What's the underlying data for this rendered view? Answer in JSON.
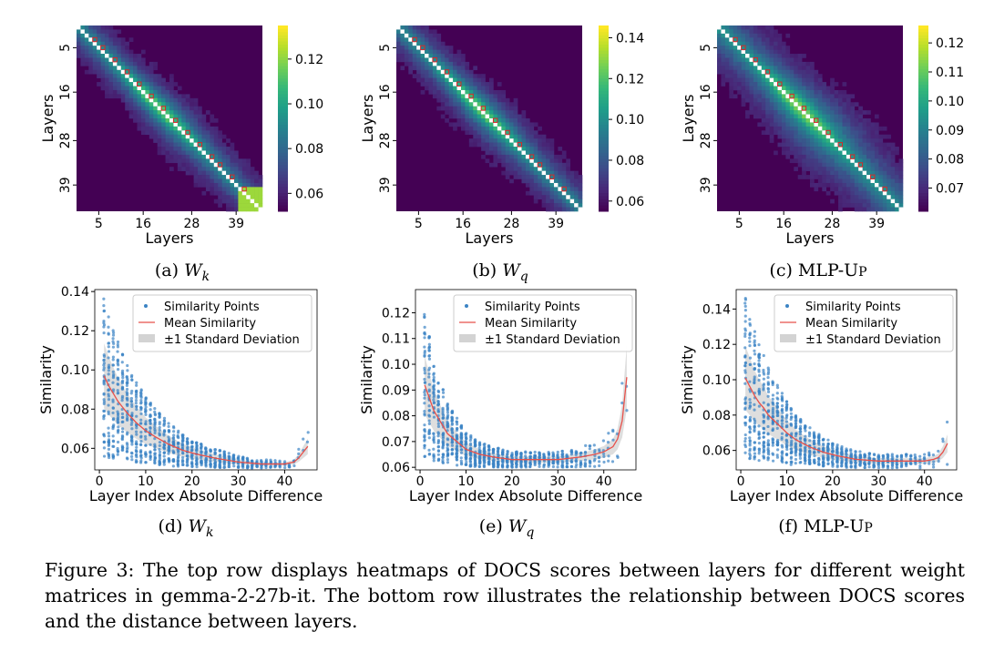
{
  "chart_data": [
    {
      "type": "heatmap",
      "panel": "top-left",
      "subcaption": "(a) W_k",
      "xlabel": "Layers",
      "ylabel": "Layers",
      "ticks": [
        "5",
        "16",
        "28",
        "39"
      ],
      "n_layers": 46,
      "colorbar_ticks": [
        "0.06",
        "0.08",
        "0.10",
        "0.12"
      ],
      "vmin": 0.052,
      "vmax": 0.135,
      "band_width": 4,
      "corner": "bottom-right bright"
    },
    {
      "type": "heatmap",
      "panel": "top-middle",
      "subcaption": "(b) W_q",
      "xlabel": "Layers",
      "ylabel": "Layers",
      "ticks": [
        "5",
        "16",
        "28",
        "39"
      ],
      "n_layers": 46,
      "colorbar_ticks": [
        "0.06",
        "0.08",
        "0.10",
        "0.12",
        "0.14"
      ],
      "vmin": 0.055,
      "vmax": 0.146,
      "band_width": 4
    },
    {
      "type": "heatmap",
      "panel": "top-right",
      "subcaption": "(c) MLP-Up",
      "xlabel": "Layers",
      "ylabel": "Layers",
      "ticks": [
        "5",
        "16",
        "28",
        "39"
      ],
      "n_layers": 46,
      "colorbar_ticks": [
        "0.07",
        "0.08",
        "0.09",
        "0.10",
        "0.11",
        "0.12"
      ],
      "vmin": 0.062,
      "vmax": 0.126,
      "band_width": 6
    },
    {
      "type": "scatter",
      "panel": "bottom-left",
      "subcaption": "(d) W_k",
      "xlabel": "Layer Index Absolute Difference",
      "ylabel": "Similarity",
      "xlim": [
        -1,
        47
      ],
      "ylim": [
        0.049,
        0.141
      ],
      "xticks": [
        0,
        10,
        20,
        30,
        40
      ],
      "yticks": [
        0.06,
        0.08,
        0.1,
        0.12,
        0.14
      ],
      "mean_x": [
        1,
        2,
        3,
        4,
        5,
        6,
        8,
        10,
        12,
        15,
        18,
        21,
        25,
        30,
        35,
        40,
        42,
        43,
        44,
        45
      ],
      "mean_y": [
        0.097,
        0.092,
        0.088,
        0.084,
        0.081,
        0.078,
        0.073,
        0.069,
        0.066,
        0.062,
        0.059,
        0.057,
        0.055,
        0.053,
        0.052,
        0.052,
        0.053,
        0.055,
        0.058,
        0.061
      ],
      "legend": [
        "Similarity Points",
        "Mean Similarity",
        "±1 Standard Deviation"
      ]
    },
    {
      "type": "scatter",
      "panel": "bottom-middle",
      "subcaption": "(e) W_q",
      "xlabel": "Layer Index Absolute Difference",
      "ylabel": "Similarity",
      "xlim": [
        -1,
        47
      ],
      "ylim": [
        0.059,
        0.129
      ],
      "xticks": [
        0,
        10,
        20,
        30,
        40
      ],
      "yticks": [
        0.06,
        0.07,
        0.08,
        0.09,
        0.1,
        0.11,
        0.12
      ],
      "mean_x": [
        1,
        2,
        3,
        4,
        5,
        6,
        8,
        10,
        13,
        16,
        20,
        25,
        30,
        35,
        38,
        40,
        42,
        43,
        44,
        45
      ],
      "mean_y": [
        0.092,
        0.087,
        0.082,
        0.079,
        0.076,
        0.073,
        0.07,
        0.067,
        0.065,
        0.064,
        0.063,
        0.063,
        0.063,
        0.064,
        0.065,
        0.066,
        0.068,
        0.071,
        0.078,
        0.095
      ],
      "legend": [
        "Similarity Points",
        "Mean Similarity",
        "±1 Standard Deviation"
      ]
    },
    {
      "type": "scatter",
      "panel": "bottom-right",
      "subcaption": "(f) MLP-Up",
      "xlabel": "Layer Index Absolute Difference",
      "ylabel": "Similarity",
      "xlim": [
        -1,
        47
      ],
      "ylim": [
        0.049,
        0.151
      ],
      "xticks": [
        0,
        10,
        20,
        30,
        40
      ],
      "yticks": [
        0.06,
        0.08,
        0.1,
        0.12,
        0.14
      ],
      "mean_x": [
        1,
        2,
        3,
        4,
        5,
        6,
        8,
        10,
        12,
        15,
        18,
        21,
        25,
        30,
        35,
        40,
        42,
        43,
        44,
        45
      ],
      "mean_y": [
        0.101,
        0.096,
        0.091,
        0.087,
        0.084,
        0.08,
        0.075,
        0.07,
        0.066,
        0.062,
        0.059,
        0.057,
        0.055,
        0.054,
        0.054,
        0.054,
        0.055,
        0.056,
        0.059,
        0.064
      ],
      "legend": [
        "Similarity Points",
        "Mean Similarity",
        "±1 Standard Deviation"
      ]
    }
  ],
  "subcaptions": {
    "a": {
      "prefix": "(a)",
      "sym": "W",
      "sub": "k"
    },
    "b": {
      "prefix": "(b)",
      "sym": "W",
      "sub": "q"
    },
    "c": {
      "prefix": "(c)",
      "text": "MLP-U",
      "small": "P"
    },
    "d": {
      "prefix": "(d)",
      "sym": "W",
      "sub": "k"
    },
    "e": {
      "prefix": "(e)",
      "sym": "W",
      "sub": "q"
    },
    "f": {
      "prefix": "(f)",
      "text": "MLP-U",
      "small": "P"
    }
  },
  "caption": "Figure 3: The top row displays heatmaps of DOCS scores between layers for different weight matrices in gemma-2-27b-it. The bottom row illustrates the relationship between DOCS scores and the distance between layers."
}
